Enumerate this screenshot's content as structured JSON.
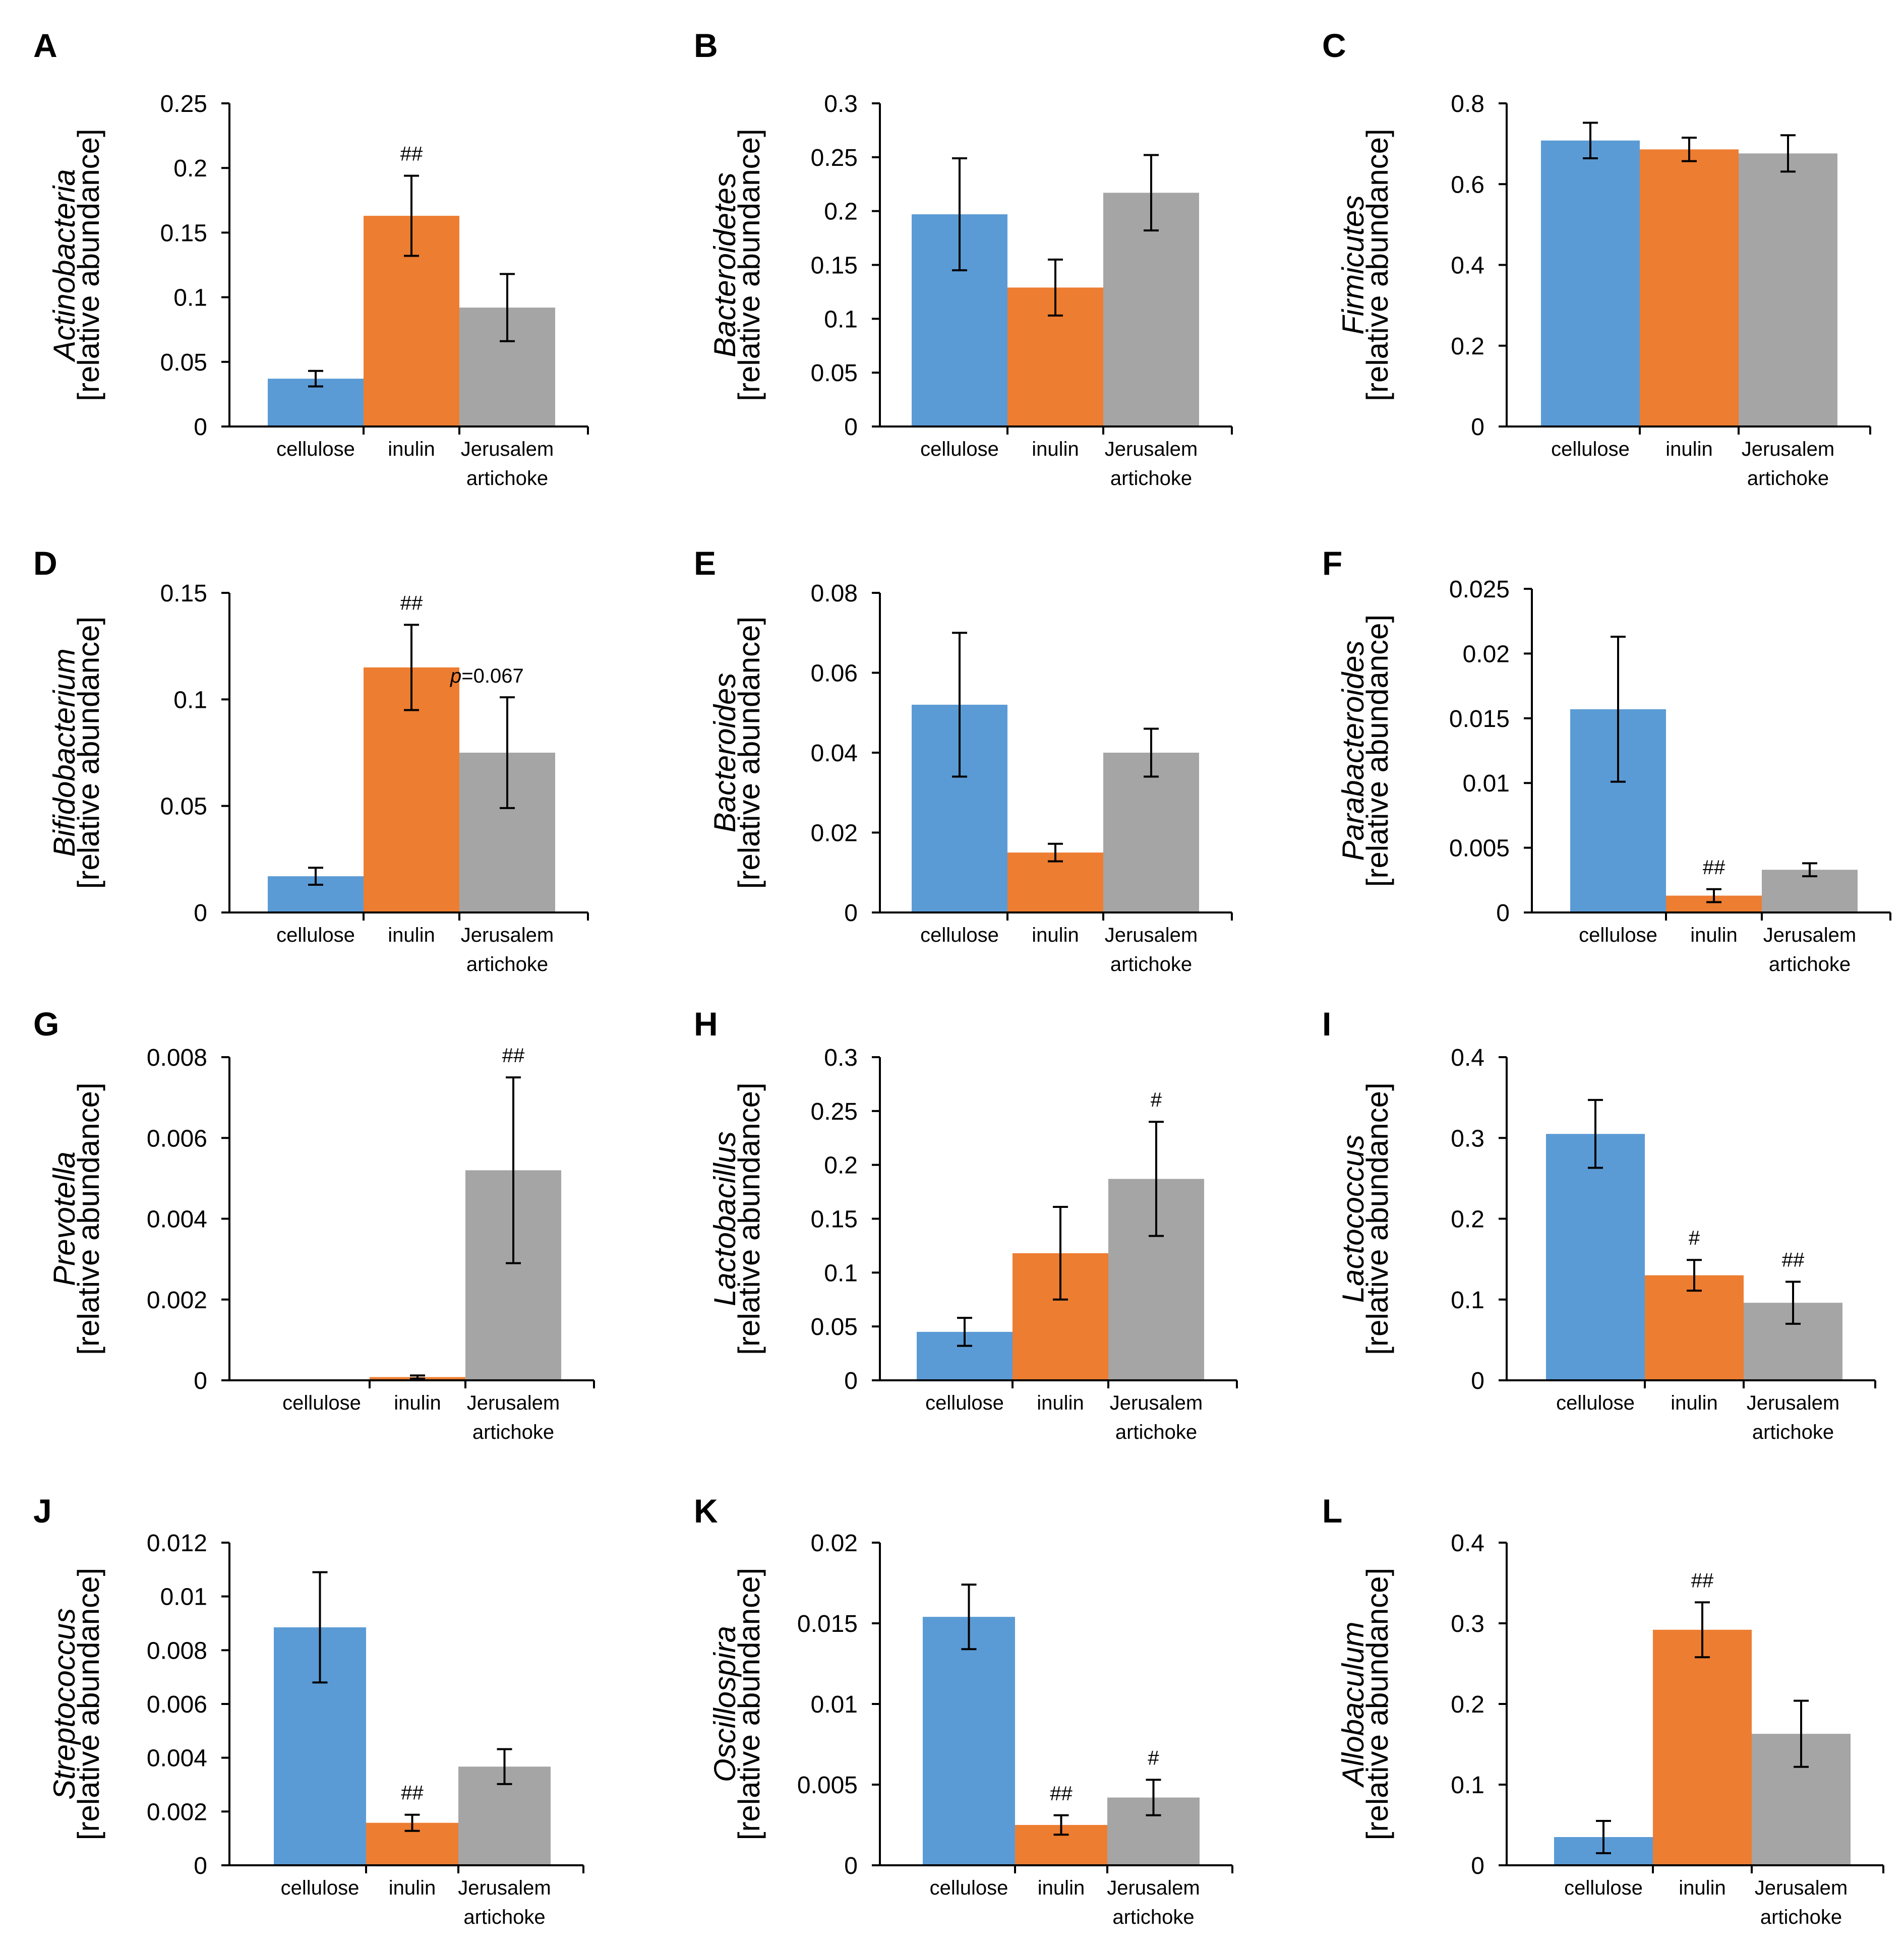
{
  "colors": {
    "cellulose": "#5B9BD5",
    "inulin": "#ED7D31",
    "jerusalem_artichoke": "#A5A5A5"
  },
  "chart_data": [
    {
      "panel": "A",
      "type": "bar",
      "ylabel_taxon": "Actinobacteria",
      "ylabel_unit": "[relative abundance]",
      "categories": [
        [
          "cellulose"
        ],
        [
          "inulin"
        ],
        [
          "Jerusalem",
          "artichoke"
        ]
      ],
      "values": [
        0.037,
        0.163,
        0.092
      ],
      "errors": [
        0.006,
        0.031,
        0.026
      ],
      "yticks": [
        "0",
        "0.05",
        "0.1",
        "0.15",
        "0.2",
        "0.25"
      ],
      "ylim": [
        0,
        0.25
      ],
      "significance": [
        "",
        "##",
        ""
      ],
      "note": ""
    },
    {
      "panel": "B",
      "type": "bar",
      "ylabel_taxon": "Bacteroidetes",
      "ylabel_unit": "[relative abundance]",
      "categories": [
        [
          "cellulose"
        ],
        [
          "inulin"
        ],
        [
          "Jerusalem",
          "artichoke"
        ]
      ],
      "values": [
        0.197,
        0.129,
        0.217
      ],
      "errors": [
        0.052,
        0.026,
        0.035
      ],
      "yticks": [
        "0",
        "0.05",
        "0.1",
        "0.15",
        "0.2",
        "0.25",
        "0.3"
      ],
      "ylim": [
        0,
        0.3
      ],
      "significance": [
        "",
        "",
        ""
      ],
      "note": ""
    },
    {
      "panel": "C",
      "type": "bar",
      "ylabel_taxon": "Firmicutes",
      "ylabel_unit": "[relative abundance]",
      "categories": [
        [
          "cellulose"
        ],
        [
          "inulin"
        ],
        [
          "Jerusalem",
          "artichoke"
        ]
      ],
      "values": [
        0.708,
        0.686,
        0.676
      ],
      "errors": [
        0.044,
        0.029,
        0.045
      ],
      "yticks": [
        "0",
        "0.2",
        "0.4",
        "0.6",
        "0.8"
      ],
      "ylim": [
        0,
        0.8
      ],
      "significance": [
        "",
        "",
        ""
      ],
      "note": ""
    },
    {
      "panel": "D",
      "type": "bar",
      "ylabel_taxon": "Bifidobacterium",
      "ylabel_unit": "[relative abundance]",
      "categories": [
        [
          "cellulose"
        ],
        [
          "inulin"
        ],
        [
          "Jerusalem",
          "artichoke"
        ]
      ],
      "values": [
        0.017,
        0.115,
        0.075
      ],
      "errors": [
        0.004,
        0.02,
        0.026
      ],
      "yticks": [
        "0",
        "0.05",
        "0.1",
        "0.15"
      ],
      "ylim": [
        0,
        0.15
      ],
      "significance": [
        "",
        "##",
        ""
      ],
      "note": "p=0.067"
    },
    {
      "panel": "E",
      "type": "bar",
      "ylabel_taxon": "Bacteroides",
      "ylabel_unit": "[relative abundance]",
      "categories": [
        [
          "cellulose"
        ],
        [
          "inulin"
        ],
        [
          "Jerusalem",
          "artichoke"
        ]
      ],
      "values": [
        0.052,
        0.015,
        0.04
      ],
      "errors": [
        0.018,
        0.0022,
        0.006
      ],
      "yticks": [
        "0",
        "0.02",
        "0.04",
        "0.06",
        "0.08"
      ],
      "ylim": [
        0,
        0.08
      ],
      "significance": [
        "",
        "",
        ""
      ],
      "note": ""
    },
    {
      "panel": "F",
      "type": "bar",
      "ylabel_taxon": "Parabacteroides",
      "ylabel_unit": "[relative abundance]",
      "categories": [
        [
          "cellulose"
        ],
        [
          "inulin"
        ],
        [
          "Jerusalem",
          "artichoke"
        ]
      ],
      "values": [
        0.0157,
        0.0013,
        0.0033
      ],
      "errors": [
        0.0056,
        0.0005,
        0.0005
      ],
      "yticks": [
        "0",
        "0.005",
        "0.01",
        "0.015",
        "0.02",
        "0.025"
      ],
      "ylim": [
        0,
        0.025
      ],
      "significance": [
        "",
        "##",
        ""
      ],
      "note": ""
    },
    {
      "panel": "G",
      "type": "bar",
      "ylabel_taxon": "Prevotella",
      "ylabel_unit": "[relative abundance]",
      "categories": [
        [
          "cellulose"
        ],
        [
          "inulin"
        ],
        [
          "Jerusalem",
          "artichoke"
        ]
      ],
      "values": [
        1e-05,
        8e-05,
        0.0052
      ],
      "errors": [
        0,
        4e-05,
        0.0023
      ],
      "yticks": [
        "0",
        "0.002",
        "0.004",
        "0.006",
        "0.008"
      ],
      "ylim": [
        0,
        0.008
      ],
      "significance": [
        "",
        "",
        "##"
      ],
      "note": ""
    },
    {
      "panel": "H",
      "type": "bar",
      "ylabel_taxon": "Lactobacillus",
      "ylabel_unit": "[relative abundance]",
      "categories": [
        [
          "cellulose"
        ],
        [
          "inulin"
        ],
        [
          "Jerusalem",
          "artichoke"
        ]
      ],
      "values": [
        0.045,
        0.118,
        0.187
      ],
      "errors": [
        0.013,
        0.043,
        0.053
      ],
      "yticks": [
        "0",
        "0.05",
        "0.1",
        "0.15",
        "0.2",
        "0.25",
        "0.3"
      ],
      "ylim": [
        0,
        0.3
      ],
      "significance": [
        "",
        "",
        "#"
      ],
      "note": ""
    },
    {
      "panel": "I",
      "type": "bar",
      "ylabel_taxon": "Lactococcus",
      "ylabel_unit": "[relative abundance]",
      "categories": [
        [
          "cellulose"
        ],
        [
          "inulin"
        ],
        [
          "Jerusalem",
          "artichoke"
        ]
      ],
      "values": [
        0.305,
        0.13,
        0.096
      ],
      "errors": [
        0.042,
        0.019,
        0.026
      ],
      "yticks": [
        "0",
        "0.1",
        "0.2",
        "0.3",
        "0.4"
      ],
      "ylim": [
        0,
        0.4
      ],
      "significance": [
        "",
        "#",
        "##"
      ],
      "note": ""
    },
    {
      "panel": "J",
      "type": "bar",
      "ylabel_taxon": "Streptococcus",
      "ylabel_unit": "[relative abundance]",
      "categories": [
        [
          "cellulose"
        ],
        [
          "inulin"
        ],
        [
          "Jerusalem",
          "artichoke"
        ]
      ],
      "values": [
        0.00885,
        0.00158,
        0.00367
      ],
      "errors": [
        0.00205,
        0.0003,
        0.00065
      ],
      "yticks": [
        "0",
        "0.002",
        "0.004",
        "0.006",
        "0.008",
        "0.01",
        "0.012"
      ],
      "ylim": [
        0,
        0.012
      ],
      "significance": [
        "",
        "##",
        ""
      ],
      "note": ""
    },
    {
      "panel": "K",
      "type": "bar",
      "ylabel_taxon": "Oscillospira",
      "ylabel_unit": "[relative abundance]",
      "categories": [
        [
          "cellulose"
        ],
        [
          "inulin"
        ],
        [
          "Jerusalem",
          "artichoke"
        ]
      ],
      "values": [
        0.0154,
        0.0025,
        0.0042
      ],
      "errors": [
        0.002,
        0.0006,
        0.0011
      ],
      "yticks": [
        "0",
        "0.005",
        "0.01",
        "0.015",
        "0.02"
      ],
      "ylim": [
        0,
        0.02
      ],
      "significance": [
        "",
        "##",
        "#"
      ],
      "note": ""
    },
    {
      "panel": "L",
      "type": "bar",
      "ylabel_taxon": "Allobaculum",
      "ylabel_unit": "[relative abundance]",
      "categories": [
        [
          "cellulose"
        ],
        [
          "inulin"
        ],
        [
          "Jerusalem",
          "artichoke"
        ]
      ],
      "values": [
        0.035,
        0.292,
        0.163
      ],
      "errors": [
        0.02,
        0.034,
        0.041
      ],
      "yticks": [
        "0",
        "0.1",
        "0.2",
        "0.3",
        "0.4"
      ],
      "ylim": [
        0,
        0.4
      ],
      "significance": [
        "",
        "##",
        ""
      ],
      "note": ""
    }
  ]
}
